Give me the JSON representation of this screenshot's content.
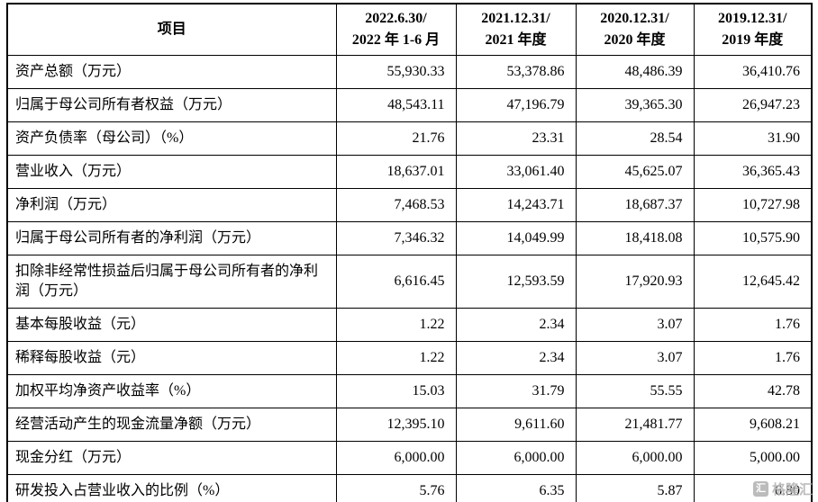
{
  "table": {
    "header": {
      "item_label": "项目",
      "periods": [
        {
          "line1": "2022.6.30/",
          "line2": "2022 年 1-6 月"
        },
        {
          "line1": "2021.12.31/",
          "line2": "2021 年度"
        },
        {
          "line1": "2020.12.31/",
          "line2": "2020 年度"
        },
        {
          "line1": "2019.12.31/",
          "line2": "2019 年度"
        }
      ]
    },
    "rows": [
      {
        "item": "资产总额（万元）",
        "values": [
          "55,930.33",
          "53,378.86",
          "48,486.39",
          "36,410.76"
        ]
      },
      {
        "item": "归属于母公司所有者权益（万元）",
        "values": [
          "48,543.11",
          "47,196.79",
          "39,365.30",
          "26,947.23"
        ]
      },
      {
        "item": "资产负债率（母公司）（%）",
        "values": [
          "21.76",
          "23.31",
          "28.54",
          "31.90"
        ]
      },
      {
        "item": "营业收入（万元）",
        "values": [
          "18,637.01",
          "33,061.40",
          "45,625.07",
          "36,365.43"
        ]
      },
      {
        "item": "净利润（万元）",
        "values": [
          "7,468.53",
          "14,243.71",
          "18,687.37",
          "10,727.98"
        ]
      },
      {
        "item": "归属于母公司所有者的净利润（万元）",
        "values": [
          "7,346.32",
          "14,049.99",
          "18,418.08",
          "10,575.90"
        ]
      },
      {
        "item": "扣除非经常性损益后归属于母公司所有者的净利润（万元）",
        "values": [
          "6,616.45",
          "12,593.59",
          "17,920.93",
          "12,645.42"
        ]
      },
      {
        "item": "基本每股收益（元）",
        "values": [
          "1.22",
          "2.34",
          "3.07",
          "1.76"
        ]
      },
      {
        "item": "稀释每股收益（元）",
        "values": [
          "1.22",
          "2.34",
          "3.07",
          "1.76"
        ]
      },
      {
        "item": "加权平均净资产收益率（%）",
        "values": [
          "15.03",
          "31.79",
          "55.55",
          "42.78"
        ]
      },
      {
        "item": "经营活动产生的现金流量净额（万元）",
        "values": [
          "12,395.10",
          "9,611.60",
          "21,481.77",
          "9,608.21"
        ]
      },
      {
        "item": "现金分红（万元）",
        "values": [
          "6,000.00",
          "6,000.00",
          "6,000.00",
          "5,000.00"
        ]
      },
      {
        "item": "研发投入占营业收入的比例（%）",
        "values": [
          "5.76",
          "6.35",
          "5.87",
          "6.80"
        ]
      }
    ]
  },
  "watermark": {
    "icon_glyph": "汇",
    "text": "格隆汇"
  }
}
